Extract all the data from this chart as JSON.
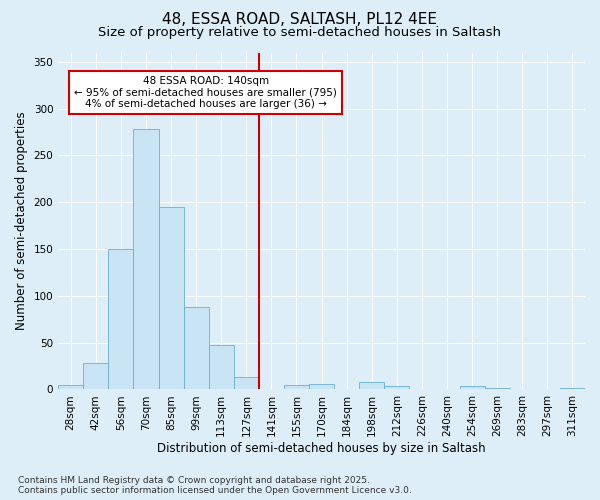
{
  "title": "48, ESSA ROAD, SALTASH, PL12 4EE",
  "subtitle": "Size of property relative to semi-detached houses in Saltash",
  "xlabel": "Distribution of semi-detached houses by size in Saltash",
  "ylabel": "Number of semi-detached properties",
  "bin_labels": [
    "28sqm",
    "42sqm",
    "56sqm",
    "70sqm",
    "85sqm",
    "99sqm",
    "113sqm",
    "127sqm",
    "141sqm",
    "155sqm",
    "170sqm",
    "184sqm",
    "198sqm",
    "212sqm",
    "226sqm",
    "240sqm",
    "254sqm",
    "269sqm",
    "283sqm",
    "297sqm",
    "311sqm"
  ],
  "bar_values": [
    5,
    28,
    150,
    278,
    195,
    88,
    48,
    13,
    0,
    5,
    6,
    0,
    8,
    4,
    0,
    0,
    4,
    2,
    1,
    0,
    2
  ],
  "n_bins": 21,
  "bar_color": "#c8e4f5",
  "bar_edge_color": "#6aaed6",
  "marker_bin_index": 8,
  "marker_color": "#cc0000",
  "annotation_text": "48 ESSA ROAD: 140sqm\n← 95% of semi-detached houses are smaller (795)\n4% of semi-detached houses are larger (36) →",
  "annotation_box_facecolor": "#ffffff",
  "annotation_box_edgecolor": "#cc0000",
  "bg_color": "#ddeef8",
  "plot_bg_color": "#ddeef8",
  "ylim": [
    0,
    360
  ],
  "yticks": [
    0,
    50,
    100,
    150,
    200,
    250,
    300,
    350
  ],
  "title_fontsize": 11,
  "subtitle_fontsize": 9.5,
  "axis_label_fontsize": 8.5,
  "tick_fontsize": 7.5,
  "annotation_fontsize": 7.5,
  "footer_fontsize": 6.5,
  "footer_line1": "Contains HM Land Registry data © Crown copyright and database right 2025.",
  "footer_line2": "Contains public sector information licensed under the Open Government Licence v3.0."
}
